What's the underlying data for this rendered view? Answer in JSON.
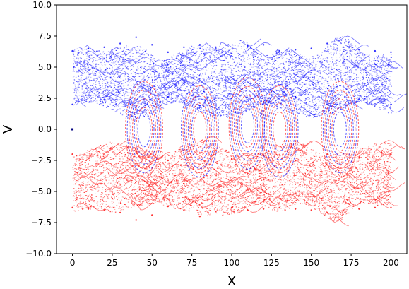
{
  "chart_data": {
    "type": "scatter",
    "title": "",
    "xlabel": "X",
    "ylabel": "V",
    "xlim": [
      -10,
      210
    ],
    "ylim": [
      -10,
      10
    ],
    "xticks": [
      0,
      25,
      50,
      75,
      100,
      125,
      150,
      175,
      200
    ],
    "xtick_labels": [
      "0",
      "25",
      "50",
      "75",
      "100",
      "125",
      "150",
      "175",
      "200"
    ],
    "yticks": [
      -10.0,
      -7.5,
      -5.0,
      -2.5,
      0.0,
      2.5,
      5.0,
      7.5,
      10.0
    ],
    "ytick_labels": [
      "−10.0",
      "−7.5",
      "−5.0",
      "−2.5",
      "0.0",
      "2.5",
      "5.0",
      "7.5",
      "10.0"
    ],
    "grid": false,
    "legend": "none",
    "series": [
      {
        "color": "#0000ff",
        "description_band": {
          "x_range": [
            0,
            200
          ],
          "v_typical_range": [
            1.5,
            6.5
          ]
        },
        "representative_points": [
          [
            0,
            6.3
          ],
          [
            10,
            6.5
          ],
          [
            20,
            6.6
          ],
          [
            30,
            6.9
          ],
          [
            40,
            7.4
          ],
          [
            50,
            6.8
          ],
          [
            60,
            6.2
          ],
          [
            70,
            6.6
          ],
          [
            80,
            6.8
          ],
          [
            90,
            6.6
          ],
          [
            100,
            6.1
          ],
          [
            110,
            6.7
          ],
          [
            120,
            6.8
          ],
          [
            130,
            6.3
          ],
          [
            140,
            6.4
          ],
          [
            150,
            6.5
          ],
          [
            160,
            6.9
          ],
          [
            170,
            6.6
          ],
          [
            180,
            6.4
          ],
          [
            190,
            6.3
          ],
          [
            200,
            6.2
          ],
          [
            0,
            2.0
          ],
          [
            20,
            2.4
          ],
          [
            40,
            1.8
          ],
          [
            60,
            2.6
          ],
          [
            80,
            1.9
          ],
          [
            100,
            2.5
          ],
          [
            120,
            2.2
          ],
          [
            140,
            2.6
          ],
          [
            160,
            2.0
          ],
          [
            180,
            2.4
          ],
          [
            200,
            2.0
          ]
        ]
      },
      {
        "color": "#ff0000",
        "description_band": {
          "x_range": [
            0,
            200
          ],
          "v_typical_range": [
            -6.5,
            -1.5
          ]
        },
        "representative_points": [
          [
            0,
            -6.3
          ],
          [
            10,
            -6.4
          ],
          [
            20,
            -6.5
          ],
          [
            30,
            -6.7
          ],
          [
            40,
            -7.3
          ],
          [
            50,
            -6.9
          ],
          [
            60,
            -6.2
          ],
          [
            70,
            -6.5
          ],
          [
            80,
            -7.0
          ],
          [
            90,
            -6.6
          ],
          [
            100,
            -6.3
          ],
          [
            110,
            -6.5
          ],
          [
            120,
            -6.4
          ],
          [
            130,
            -6.3
          ],
          [
            140,
            -6.4
          ],
          [
            150,
            -6.5
          ],
          [
            160,
            -6.7
          ],
          [
            170,
            -6.5
          ],
          [
            180,
            -6.4
          ],
          [
            190,
            -6.3
          ],
          [
            200,
            -6.3
          ],
          [
            0,
            -2.0
          ],
          [
            20,
            -2.3
          ],
          [
            40,
            -1.8
          ],
          [
            60,
            -2.5
          ],
          [
            80,
            -1.9
          ],
          [
            100,
            -2.4
          ],
          [
            120,
            -2.1
          ],
          [
            140,
            -2.5
          ],
          [
            160,
            -2.0
          ],
          [
            180,
            -2.3
          ],
          [
            200,
            -2.0
          ]
        ]
      }
    ],
    "vortices": [
      {
        "x_center": 45,
        "v_center": 0.0
      },
      {
        "x_center": 80,
        "v_center": 0.0
      },
      {
        "x_center": 110,
        "v_center": 0.3
      },
      {
        "x_center": 130,
        "v_center": 0.0
      },
      {
        "x_center": 168,
        "v_center": 0.0
      }
    ]
  }
}
